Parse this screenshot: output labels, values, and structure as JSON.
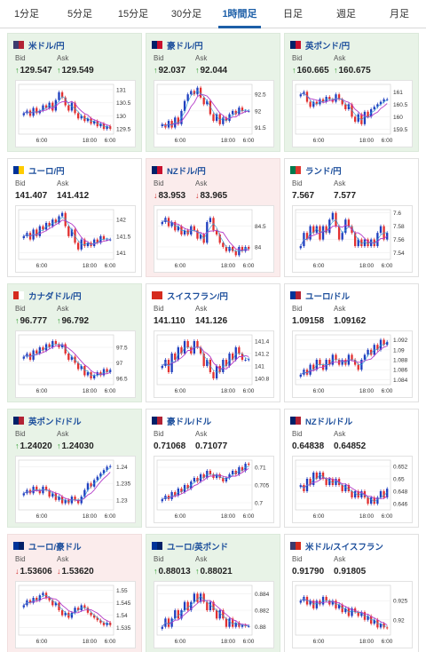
{
  "tabs": [
    {
      "label": "1分足",
      "active": false
    },
    {
      "label": "5分足",
      "active": false
    },
    {
      "label": "15分足",
      "active": false
    },
    {
      "label": "30分足",
      "active": false
    },
    {
      "label": "1時間足",
      "active": true
    },
    {
      "label": "日足",
      "active": false
    },
    {
      "label": "週足",
      "active": false
    },
    {
      "label": "月足",
      "active": false
    }
  ],
  "labels": {
    "bid": "Bid",
    "ask": "Ask"
  },
  "colors": {
    "up_arrow": "#2a9d2a",
    "down_arrow": "#d32f2f",
    "candle_up": "#1f3fbf",
    "candle_down": "#e23030",
    "ma_line": "#b43cc8",
    "link": "#1d4f9c",
    "active_tab": "#1d5fa8"
  },
  "cards": [
    {
      "name": "米ドル/円",
      "flag": [
        "#3c3b6e",
        "#b22234"
      ],
      "trend": "up",
      "bid": "129.547",
      "ask": "129.549",
      "bid_dir": "up",
      "ask_dir": "up",
      "chart_data": {
        "type": "candlestick",
        "x_ticks": [
          "6:00",
          "18:00",
          "6:00"
        ],
        "y_ticks": [
          "131",
          "130.5",
          "130",
          "129.5"
        ],
        "ylim": [
          129.3,
          131.2
        ],
        "close_series": [
          130.1,
          130.2,
          130.0,
          130.3,
          130.1,
          130.2,
          130.4,
          130.3,
          130.5,
          130.2,
          130.6,
          130.9,
          130.7,
          130.4,
          130.2,
          130.5,
          130.1,
          129.9,
          130.0,
          129.8,
          129.9,
          129.7,
          129.8,
          129.6,
          129.7,
          129.5,
          129.6,
          129.5
        ]
      }
    },
    {
      "name": "豪ドル/円",
      "flag": [
        "#012169",
        "#c8102e"
      ],
      "trend": "up",
      "bid": "92.037",
      "ask": "92.044",
      "bid_dir": "up",
      "ask_dir": "up",
      "chart_data": {
        "type": "candlestick",
        "x_ticks": [
          "6:00",
          "18:00",
          "6:00"
        ],
        "y_ticks": [
          "92.5",
          "92",
          "91.5"
        ],
        "ylim": [
          91.3,
          92.8
        ],
        "close_series": [
          91.6,
          91.5,
          91.7,
          91.5,
          91.8,
          91.6,
          92.0,
          92.3,
          92.5,
          92.6,
          92.5,
          92.7,
          92.4,
          92.2,
          92.3,
          91.9,
          91.7,
          91.9,
          91.6,
          91.8,
          91.7,
          91.9,
          92.0,
          91.9,
          92.1,
          92.0,
          92.0,
          92.0
        ]
      }
    },
    {
      "name": "英ポンド/円",
      "flag": [
        "#012169",
        "#c8102e"
      ],
      "trend": "up",
      "bid": "160.665",
      "ask": "160.675",
      "bid_dir": "up",
      "ask_dir": "up",
      "chart_data": {
        "type": "candlestick",
        "x_ticks": [
          "6:00",
          "18:00",
          "6:00"
        ],
        "y_ticks": [
          "161",
          "160.5",
          "160",
          "159.5"
        ],
        "ylim": [
          159.3,
          161.3
        ],
        "close_series": [
          160.9,
          161.0,
          160.6,
          160.4,
          160.6,
          160.5,
          160.7,
          160.6,
          160.8,
          160.7,
          160.6,
          160.9,
          160.7,
          160.5,
          160.3,
          160.5,
          160.0,
          159.8,
          160.1,
          159.7,
          160.2,
          160.0,
          160.3,
          160.4,
          160.5,
          160.6,
          160.7,
          160.7
        ]
      }
    },
    {
      "name": "ユーロ/円",
      "flag": [
        "#003399",
        "#ffcc00"
      ],
      "trend": "none",
      "bid": "141.407",
      "ask": "141.412",
      "bid_dir": "none",
      "ask_dir": "none",
      "chart_data": {
        "type": "candlestick",
        "x_ticks": [
          "6:00",
          "18:00",
          "6:00"
        ],
        "y_ticks": [
          "142",
          "141.5",
          "141"
        ],
        "ylim": [
          140.8,
          142.3
        ],
        "close_series": [
          141.5,
          141.6,
          141.4,
          141.7,
          141.5,
          141.8,
          141.7,
          141.9,
          141.8,
          142.0,
          141.9,
          142.1,
          142.2,
          141.8,
          141.5,
          141.7,
          141.3,
          141.1,
          141.4,
          141.2,
          141.3,
          141.2,
          141.4,
          141.3,
          141.5,
          141.4,
          141.4,
          141.4
        ]
      }
    },
    {
      "name": "NZドル/円",
      "flag": [
        "#012169",
        "#c8102e"
      ],
      "trend": "down",
      "bid": "83.953",
      "ask": "83.965",
      "bid_dir": "down",
      "ask_dir": "down",
      "chart_data": {
        "type": "candlestick",
        "x_ticks": [
          "6:00",
          "18:00",
          "6:00"
        ],
        "y_ticks": [
          "84.5",
          "84"
        ],
        "ylim": [
          83.7,
          84.9
        ],
        "close_series": [
          84.6,
          84.7,
          84.5,
          84.6,
          84.4,
          84.5,
          84.3,
          84.4,
          84.3,
          84.5,
          84.4,
          84.2,
          84.3,
          84.1,
          84.6,
          84.7,
          84.4,
          84.3,
          84.1,
          84.0,
          83.9,
          84.0,
          83.9,
          83.8,
          84.0,
          83.9,
          84.0,
          83.95
        ]
      }
    },
    {
      "name": "ランド/円",
      "flag": [
        "#007a4d",
        "#de3831"
      ],
      "trend": "none",
      "bid": "7.567",
      "ask": "7.577",
      "bid_dir": "none",
      "ask_dir": "none",
      "chart_data": {
        "type": "candlestick",
        "x_ticks": [
          "6:00",
          "18:00",
          "6:00"
        ],
        "y_ticks": [
          "7.6",
          "7.58",
          "7.56",
          "7.54"
        ],
        "ylim": [
          7.53,
          7.605
        ],
        "close_series": [
          7.55,
          7.57,
          7.56,
          7.58,
          7.57,
          7.58,
          7.56,
          7.58,
          7.57,
          7.59,
          7.6,
          7.58,
          7.56,
          7.57,
          7.59,
          7.58,
          7.57,
          7.55,
          7.56,
          7.55,
          7.56,
          7.55,
          7.56,
          7.55,
          7.57,
          7.58,
          7.56,
          7.57
        ]
      }
    },
    {
      "name": "カナダドル/円",
      "flag": [
        "#d52b1e",
        "#ffffff"
      ],
      "trend": "up",
      "bid": "96.777",
      "ask": "96.792",
      "bid_dir": "up",
      "ask_dir": "up",
      "chart_data": {
        "type": "candlestick",
        "x_ticks": [
          "6:00",
          "18:00",
          "6:00"
        ],
        "y_ticks": [
          "97.5",
          "97",
          "96.5"
        ],
        "ylim": [
          96.3,
          97.9
        ],
        "close_series": [
          97.2,
          97.3,
          97.1,
          97.4,
          97.3,
          97.5,
          97.4,
          97.6,
          97.5,
          97.7,
          97.6,
          97.5,
          97.6,
          97.3,
          97.1,
          97.2,
          97.0,
          96.8,
          96.9,
          96.6,
          96.7,
          96.5,
          96.6,
          96.7,
          96.6,
          96.8,
          96.7,
          96.78
        ]
      }
    },
    {
      "name": "スイスフラン/円",
      "flag": [
        "#d52b1e",
        "#d52b1e"
      ],
      "trend": "none",
      "bid": "141.110",
      "ask": "141.126",
      "bid_dir": "none",
      "ask_dir": "none",
      "chart_data": {
        "type": "candlestick",
        "x_ticks": [
          "6:00",
          "18:00",
          "6:00"
        ],
        "y_ticks": [
          "141.4",
          "141.2",
          "141",
          "140.8"
        ],
        "ylim": [
          140.7,
          141.5
        ],
        "close_series": [
          141.0,
          141.1,
          140.9,
          141.2,
          141.1,
          141.3,
          141.2,
          141.4,
          141.3,
          141.2,
          141.4,
          141.3,
          141.2,
          141.0,
          141.1,
          140.9,
          140.8,
          141.0,
          140.9,
          141.1,
          141.0,
          141.2,
          141.1,
          141.3,
          141.2,
          141.1,
          141.1,
          141.11
        ]
      }
    },
    {
      "name": "ユーロ/ドル",
      "flag": [
        "#003399",
        "#b22234"
      ],
      "trend": "none",
      "bid": "1.09158",
      "ask": "1.09162",
      "bid_dir": "none",
      "ask_dir": "none",
      "chart_data": {
        "type": "candlestick",
        "x_ticks": [
          "6:00",
          "18:00",
          "6:00"
        ],
        "y_ticks": [
          "1.092",
          "1.09",
          "1.088",
          "1.086",
          "1.084"
        ],
        "ylim": [
          1.083,
          1.093
        ],
        "close_series": [
          1.085,
          1.086,
          1.085,
          1.087,
          1.086,
          1.088,
          1.087,
          1.086,
          1.088,
          1.087,
          1.089,
          1.088,
          1.087,
          1.088,
          1.087,
          1.089,
          1.088,
          1.087,
          1.086,
          1.088,
          1.089,
          1.09,
          1.089,
          1.091,
          1.09,
          1.092,
          1.091,
          1.0916
        ]
      }
    },
    {
      "name": "英ポンド/ドル",
      "flag": [
        "#012169",
        "#b22234"
      ],
      "trend": "up",
      "bid": "1.24020",
      "ask": "1.24030",
      "bid_dir": "up",
      "ask_dir": "up",
      "chart_data": {
        "type": "candlestick",
        "x_ticks": [
          "6:00",
          "18:00",
          "6:00"
        ],
        "y_ticks": [
          "1.24",
          "1.235",
          "1.23"
        ],
        "ylim": [
          1.227,
          1.242
        ],
        "close_series": [
          1.232,
          1.233,
          1.232,
          1.234,
          1.233,
          1.232,
          1.234,
          1.233,
          1.231,
          1.232,
          1.23,
          1.231,
          1.229,
          1.23,
          1.229,
          1.231,
          1.23,
          1.229,
          1.231,
          1.233,
          1.235,
          1.234,
          1.236,
          1.237,
          1.238,
          1.239,
          1.24,
          1.2402
        ]
      }
    },
    {
      "name": "豪ドル/ドル",
      "flag": [
        "#012169",
        "#b22234"
      ],
      "trend": "none",
      "bid": "0.71068",
      "ask": "0.71077",
      "bid_dir": "none",
      "ask_dir": "none",
      "chart_data": {
        "type": "candlestick",
        "x_ticks": [
          "6:00",
          "18:00",
          "6:00"
        ],
        "y_ticks": [
          "0.71",
          "0.705",
          "0.7"
        ],
        "ylim": [
          0.698,
          0.712
        ],
        "close_series": [
          0.701,
          0.702,
          0.701,
          0.703,
          0.702,
          0.704,
          0.703,
          0.705,
          0.704,
          0.706,
          0.707,
          0.706,
          0.708,
          0.707,
          0.709,
          0.708,
          0.707,
          0.708,
          0.707,
          0.706,
          0.707,
          0.708,
          0.709,
          0.708,
          0.71,
          0.709,
          0.711,
          0.7107
        ]
      }
    },
    {
      "name": "NZドル/ドル",
      "flag": [
        "#012169",
        "#b22234"
      ],
      "trend": "none",
      "bid": "0.64838",
      "ask": "0.64852",
      "bid_dir": "none",
      "ask_dir": "none",
      "chart_data": {
        "type": "candlestick",
        "x_ticks": [
          "6:00",
          "18:00",
          "6:00"
        ],
        "y_ticks": [
          "0.652",
          "0.65",
          "0.648",
          "0.646"
        ],
        "ylim": [
          0.645,
          0.653
        ],
        "close_series": [
          0.649,
          0.648,
          0.65,
          0.649,
          0.651,
          0.65,
          0.651,
          0.65,
          0.649,
          0.65,
          0.649,
          0.65,
          0.649,
          0.648,
          0.649,
          0.648,
          0.647,
          0.648,
          0.647,
          0.648,
          0.647,
          0.646,
          0.647,
          0.646,
          0.647,
          0.648,
          0.647,
          0.6484
        ]
      }
    },
    {
      "name": "ユーロ/豪ドル",
      "flag": [
        "#003399",
        "#012169"
      ],
      "trend": "down",
      "bid": "1.53606",
      "ask": "1.53620",
      "bid_dir": "down",
      "ask_dir": "down",
      "chart_data": {
        "type": "candlestick",
        "x_ticks": [
          "6:00",
          "18:00",
          "6:00"
        ],
        "y_ticks": [
          "1.55",
          "1.545",
          "1.54",
          "1.535"
        ],
        "ylim": [
          1.532,
          1.552
        ],
        "close_series": [
          1.544,
          1.546,
          1.545,
          1.547,
          1.546,
          1.548,
          1.549,
          1.547,
          1.546,
          1.544,
          1.545,
          1.542,
          1.54,
          1.541,
          1.539,
          1.541,
          1.543,
          1.542,
          1.544,
          1.543,
          1.541,
          1.54,
          1.539,
          1.538,
          1.537,
          1.536,
          1.537,
          1.536
        ]
      }
    },
    {
      "name": "ユーロ/英ポンド",
      "flag": [
        "#003399",
        "#012169"
      ],
      "trend": "up",
      "bid": "0.88013",
      "ask": "0.88021",
      "bid_dir": "up",
      "ask_dir": "up",
      "chart_data": {
        "type": "candlestick",
        "x_ticks": [
          "6:00",
          "18:00",
          "6:00"
        ],
        "y_ticks": [
          "0.884",
          "0.882",
          "0.88"
        ],
        "ylim": [
          0.879,
          0.885
        ],
        "close_series": [
          0.88,
          0.881,
          0.88,
          0.881,
          0.882,
          0.881,
          0.882,
          0.883,
          0.882,
          0.883,
          0.884,
          0.883,
          0.884,
          0.883,
          0.882,
          0.883,
          0.882,
          0.881,
          0.882,
          0.881,
          0.88,
          0.881,
          0.88,
          0.8805,
          0.88,
          0.8802,
          0.8801,
          0.8801
        ]
      }
    },
    {
      "name": "米ドル/スイスフラン",
      "flag": [
        "#3c3b6e",
        "#d52b1e"
      ],
      "trend": "none",
      "bid": "0.91790",
      "ask": "0.91805",
      "bid_dir": "none",
      "ask_dir": "none",
      "chart_data": {
        "type": "candlestick",
        "x_ticks": [
          "6:00",
          "18:00",
          "6:00"
        ],
        "y_ticks": [
          "0.925",
          "0.92"
        ],
        "ylim": [
          0.916,
          0.929
        ],
        "close_series": [
          0.925,
          0.926,
          0.924,
          0.925,
          0.923,
          0.925,
          0.924,
          0.926,
          0.925,
          0.924,
          0.925,
          0.923,
          0.924,
          0.922,
          0.923,
          0.921,
          0.923,
          0.922,
          0.921,
          0.922,
          0.92,
          0.921,
          0.919,
          0.92,
          0.918,
          0.919,
          0.918,
          0.9179
        ]
      }
    }
  ]
}
